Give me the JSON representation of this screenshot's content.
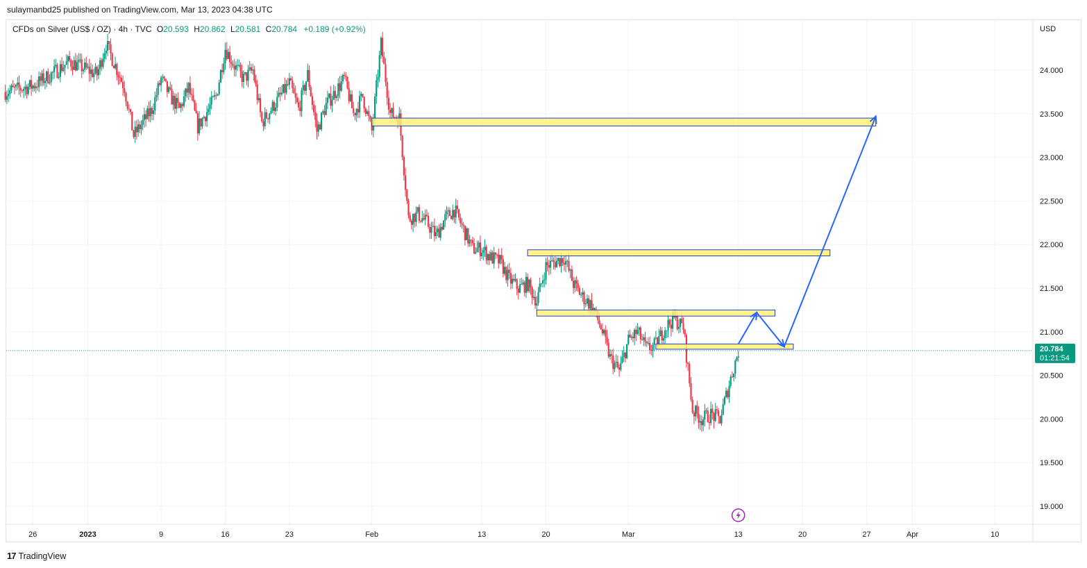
{
  "header": {
    "publisher": "sulaymanbd25 published on TradingView.com, Mar 13, 2023 04:38 UTC"
  },
  "legend": {
    "symbol": "CFDs on Silver (US$ / OZ) · 4h · TVC",
    "open_label": "O",
    "open": "20.593",
    "high_label": "H",
    "high": "20.862",
    "low_label": "L",
    "low": "20.581",
    "close_label": "C",
    "close": "20.784",
    "change": "+0.189 (+0.92%)"
  },
  "footer": {
    "logo_text": "TradingView",
    "logo_mark": "17"
  },
  "colors": {
    "up": "#089981",
    "down": "#f23645",
    "zone_fill": "#fff176",
    "zone_border": "#1e3fd4",
    "arrow": "#2962ff",
    "last_price_bg": "#089981"
  },
  "chart_data": {
    "type": "candlestick",
    "symbol": "CFDs on Silver (US$ / OZ)",
    "interval": "4h",
    "currency": "USD",
    "y_ticks": [
      19.0,
      19.5,
      20.0,
      20.5,
      21.0,
      21.5,
      22.0,
      22.5,
      23.0,
      23.5,
      24.0
    ],
    "y_tick_labels": [
      "19.000",
      "19.500",
      "20.000",
      "20.500",
      "21.000",
      "21.500",
      "22.000",
      "22.500",
      "23.000",
      "23.500",
      "24.000"
    ],
    "ylim": [
      18.78,
      24.52
    ],
    "x_ticks": [
      {
        "label": "26",
        "date": "2022-12-26"
      },
      {
        "label": "2023",
        "date": "2023-01-01"
      },
      {
        "label": "9",
        "date": "2023-01-09"
      },
      {
        "label": "16",
        "date": "2023-01-16"
      },
      {
        "label": "23",
        "date": "2023-01-23"
      },
      {
        "label": "Feb",
        "date": "2023-02-01"
      },
      {
        "label": "13",
        "date": "2023-02-13"
      },
      {
        "label": "20",
        "date": "2023-02-20"
      },
      {
        "label": "Mar",
        "date": "2023-03-01"
      },
      {
        "label": "13",
        "date": "2023-03-13"
      },
      {
        "label": "20",
        "date": "2023-03-20"
      },
      {
        "label": "27",
        "date": "2023-03-27"
      },
      {
        "label": "Apr",
        "date": "2023-04-01"
      },
      {
        "label": "10",
        "date": "2023-04-10"
      }
    ],
    "last_price": "20.784",
    "countdown": "01:21:54",
    "close_path": [
      [
        "2022-12-23",
        23.75
      ],
      [
        "2022-12-26",
        23.82
      ],
      [
        "2022-12-28",
        23.95
      ],
      [
        "2022-12-30",
        24.1
      ],
      [
        "2023-01-02",
        23.95
      ],
      [
        "2023-01-03",
        24.3
      ],
      [
        "2023-01-05",
        23.8
      ],
      [
        "2023-01-06",
        23.25
      ],
      [
        "2023-01-08",
        23.55
      ],
      [
        "2023-01-09",
        23.9
      ],
      [
        "2023-01-10",
        23.7
      ],
      [
        "2023-01-11",
        23.55
      ],
      [
        "2023-01-12",
        23.8
      ],
      [
        "2023-01-13",
        23.35
      ],
      [
        "2023-01-15",
        23.7
      ],
      [
        "2023-01-16",
        24.25
      ],
      [
        "2023-01-17",
        24.05
      ],
      [
        "2023-01-18",
        23.9
      ],
      [
        "2023-01-19",
        24.0
      ],
      [
        "2023-01-20",
        23.4
      ],
      [
        "2023-01-22",
        23.7
      ],
      [
        "2023-01-23",
        23.85
      ],
      [
        "2023-01-24",
        23.55
      ],
      [
        "2023-01-25",
        23.95
      ],
      [
        "2023-01-26",
        23.3
      ],
      [
        "2023-01-27",
        23.6
      ],
      [
        "2023-01-29",
        23.9
      ],
      [
        "2023-01-30",
        23.5
      ],
      [
        "2023-01-31",
        23.7
      ],
      [
        "2023-02-01",
        23.3
      ],
      [
        "2023-02-02",
        24.3
      ],
      [
        "2023-02-03",
        23.5
      ],
      [
        "2023-02-04",
        23.45
      ],
      [
        "2023-02-05",
        22.3
      ],
      [
        "2023-02-06",
        22.35
      ],
      [
        "2023-02-07",
        22.25
      ],
      [
        "2023-02-08",
        22.1
      ],
      [
        "2023-02-09",
        22.3
      ],
      [
        "2023-02-10",
        22.4
      ],
      [
        "2023-02-12",
        21.95
      ],
      [
        "2023-02-13",
        21.95
      ],
      [
        "2023-02-14",
        21.85
      ],
      [
        "2023-02-15",
        21.8
      ],
      [
        "2023-02-16",
        21.6
      ],
      [
        "2023-02-17",
        21.5
      ],
      [
        "2023-02-18",
        21.55
      ],
      [
        "2023-02-19",
        21.35
      ],
      [
        "2023-02-20",
        21.75
      ],
      [
        "2023-02-21",
        21.8
      ],
      [
        "2023-02-22",
        21.85
      ],
      [
        "2023-02-23",
        21.55
      ],
      [
        "2023-02-24",
        21.4
      ],
      [
        "2023-02-25",
        21.3
      ],
      [
        "2023-02-26",
        21.05
      ],
      [
        "2023-02-27",
        20.7
      ],
      [
        "2023-02-28",
        20.55
      ],
      [
        "2023-03-01",
        20.9
      ],
      [
        "2023-03-02",
        21.0
      ],
      [
        "2023-03-03",
        20.8
      ],
      [
        "2023-03-04",
        20.85
      ],
      [
        "2023-03-05",
        21.05
      ],
      [
        "2023-03-06",
        21.15
      ],
      [
        "2023-03-07",
        21.05
      ],
      [
        "2023-03-08",
        20.1
      ],
      [
        "2023-03-09",
        20.0
      ],
      [
        "2023-03-10",
        20.05
      ],
      [
        "2023-03-11",
        20.0
      ],
      [
        "2023-03-12",
        20.4
      ],
      [
        "2023-03-13",
        20.78
      ]
    ],
    "zones": [
      {
        "name": "resistance-23.4",
        "from": "2023-02-01",
        "to": "2023-03-28",
        "low": 23.36,
        "high": 23.45
      },
      {
        "name": "resistance-21.9",
        "from": "2023-02-18",
        "to": "2023-03-23",
        "low": 21.87,
        "high": 21.94
      },
      {
        "name": "resistance-21.2",
        "from": "2023-02-19",
        "to": "2023-03-17",
        "low": 21.18,
        "high": 21.25
      },
      {
        "name": "support-20.8",
        "from": "2023-03-04",
        "to": "2023-03-19",
        "low": 20.8,
        "high": 20.86
      }
    ],
    "projection": [
      [
        "2023-03-13",
        20.86
      ],
      [
        "2023-03-15",
        21.22
      ],
      [
        "2023-03-18",
        20.83
      ],
      [
        "2023-03-28",
        23.47
      ]
    ]
  }
}
